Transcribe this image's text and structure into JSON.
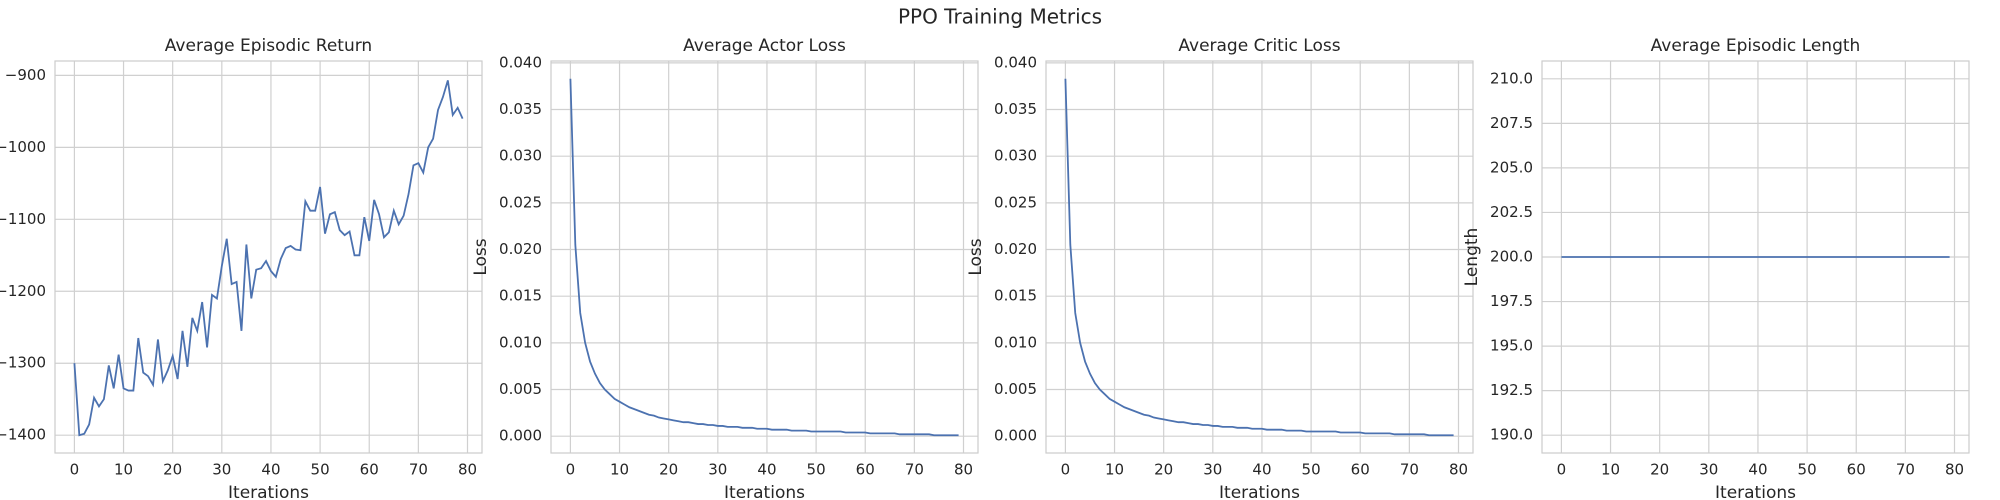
{
  "title": "PPO Training Metrics",
  "chart_data": [
    {
      "type": "line",
      "title": "Average Episodic Return",
      "xlabel": "Iterations",
      "grid": true,
      "x": [
        0,
        1,
        2,
        3,
        4,
        5,
        6,
        7,
        8,
        9,
        10,
        11,
        12,
        13,
        14,
        15,
        16,
        17,
        18,
        19,
        20,
        21,
        22,
        23,
        24,
        25,
        26,
        27,
        28,
        29,
        30,
        31,
        32,
        33,
        34,
        35,
        36,
        37,
        38,
        39,
        40,
        41,
        42,
        43,
        44,
        45,
        46,
        47,
        48,
        49,
        50,
        51,
        52,
        53,
        54,
        55,
        56,
        57,
        58,
        59,
        60,
        61,
        62,
        63,
        64,
        65,
        66,
        67,
        68,
        69,
        70,
        71,
        72,
        73,
        74,
        75,
        76,
        77,
        78,
        79
      ],
      "color": "#4c72b0",
      "values": [
        -1300,
        -1400,
        -1398,
        -1385,
        -1348,
        -1360,
        -1350,
        -1303,
        -1335,
        -1288,
        -1335,
        -1338,
        -1338,
        -1265,
        -1313,
        -1318,
        -1330,
        -1267,
        -1325,
        -1310,
        -1290,
        -1322,
        -1255,
        -1305,
        -1237,
        -1255,
        -1215,
        -1278,
        -1205,
        -1210,
        -1165,
        -1127,
        -1190,
        -1187,
        -1255,
        -1135,
        -1210,
        -1170,
        -1168,
        -1158,
        -1172,
        -1180,
        -1155,
        -1140,
        -1137,
        -1142,
        -1143,
        -1075,
        -1088,
        -1088,
        -1055,
        -1120,
        -1093,
        -1090,
        -1115,
        -1122,
        -1117,
        -1150,
        -1150,
        -1097,
        -1130,
        -1073,
        -1093,
        -1125,
        -1118,
        -1088,
        -1107,
        -1095,
        -1065,
        -1025,
        -1022,
        -1035,
        -1000,
        -988,
        -948,
        -930,
        -907,
        -955,
        -945,
        -960
      ],
      "xlim": [
        -3.95,
        82.95
      ],
      "xticks": [
        0,
        10,
        20,
        30,
        40,
        50,
        60,
        70,
        80
      ],
      "ylim": [
        -1424.75,
        -880
      ],
      "yticks": [
        {
          "value": -1400,
          "label": "−1400"
        },
        {
          "value": -1300,
          "label": "−1300"
        },
        {
          "value": -1200,
          "label": "−1200"
        },
        {
          "value": -1100,
          "label": "−1100"
        },
        {
          "value": -1000,
          "label": "−1000"
        },
        {
          "value": -900,
          "label": "−900"
        }
      ]
    },
    {
      "type": "line",
      "title": "Average Actor Loss",
      "xlabel": "Iterations",
      "ylabel": "Loss",
      "grid": true,
      "x": [
        0,
        1,
        2,
        3,
        4,
        5,
        6,
        7,
        8,
        9,
        10,
        11,
        12,
        13,
        14,
        15,
        16,
        17,
        18,
        19,
        20,
        21,
        22,
        23,
        24,
        25,
        26,
        27,
        28,
        29,
        30,
        31,
        32,
        33,
        34,
        35,
        36,
        37,
        38,
        39,
        40,
        41,
        42,
        43,
        44,
        45,
        46,
        47,
        48,
        49,
        50,
        51,
        52,
        53,
        54,
        55,
        56,
        57,
        58,
        59,
        60,
        61,
        62,
        63,
        64,
        65,
        66,
        67,
        68,
        69,
        70,
        71,
        72,
        73,
        74,
        75,
        76,
        77,
        78,
        79
      ],
      "color": "#4c72b0",
      "values": [
        0.0383,
        0.0205,
        0.0132,
        0.01,
        0.008,
        0.0067,
        0.0057,
        0.005,
        0.0045,
        0.004,
        0.0037,
        0.0034,
        0.0031,
        0.0029,
        0.0027,
        0.0025,
        0.0023,
        0.0022,
        0.002,
        0.0019,
        0.0018,
        0.0017,
        0.0016,
        0.0015,
        0.0015,
        0.0014,
        0.0013,
        0.0013,
        0.0012,
        0.0012,
        0.0011,
        0.0011,
        0.001,
        0.001,
        0.001,
        0.0009,
        0.0009,
        0.0009,
        0.0008,
        0.0008,
        0.0008,
        0.0007,
        0.0007,
        0.0007,
        0.0007,
        0.0006,
        0.0006,
        0.0006,
        0.0006,
        0.0005,
        0.0005,
        0.0005,
        0.0005,
        0.0005,
        0.0005,
        0.0005,
        0.0004,
        0.0004,
        0.0004,
        0.0004,
        0.0004,
        0.0003,
        0.0003,
        0.0003,
        0.0003,
        0.0003,
        0.0003,
        0.0002,
        0.0002,
        0.0002,
        0.0002,
        0.0002,
        0.0002,
        0.0002,
        0.0001,
        0.0001,
        0.0001,
        0.0001,
        0.0001,
        0.0001
      ],
      "xlim": [
        -3.95,
        82.95
      ],
      "xticks": [
        0,
        10,
        20,
        30,
        40,
        50,
        60,
        70,
        80
      ],
      "ylim": [
        -0.0018,
        0.0402
      ],
      "yticks": [
        {
          "value": 0,
          "label": "0.000"
        },
        {
          "value": 0.005,
          "label": "0.005"
        },
        {
          "value": 0.01,
          "label": "0.010"
        },
        {
          "value": 0.015,
          "label": "0.015"
        },
        {
          "value": 0.02,
          "label": "0.020"
        },
        {
          "value": 0.025,
          "label": "0.025"
        },
        {
          "value": 0.03,
          "label": "0.030"
        },
        {
          "value": 0.035,
          "label": "0.035"
        },
        {
          "value": 0.04,
          "label": "0.040"
        }
      ]
    },
    {
      "type": "line",
      "title": "Average Critic Loss",
      "xlabel": "Iterations",
      "ylabel": "Loss",
      "grid": true,
      "x": [
        0,
        1,
        2,
        3,
        4,
        5,
        6,
        7,
        8,
        9,
        10,
        11,
        12,
        13,
        14,
        15,
        16,
        17,
        18,
        19,
        20,
        21,
        22,
        23,
        24,
        25,
        26,
        27,
        28,
        29,
        30,
        31,
        32,
        33,
        34,
        35,
        36,
        37,
        38,
        39,
        40,
        41,
        42,
        43,
        44,
        45,
        46,
        47,
        48,
        49,
        50,
        51,
        52,
        53,
        54,
        55,
        56,
        57,
        58,
        59,
        60,
        61,
        62,
        63,
        64,
        65,
        66,
        67,
        68,
        69,
        70,
        71,
        72,
        73,
        74,
        75,
        76,
        77,
        78,
        79
      ],
      "color": "#4c72b0",
      "values": [
        0.0383,
        0.0205,
        0.0132,
        0.01,
        0.008,
        0.0067,
        0.0057,
        0.005,
        0.0045,
        0.004,
        0.0037,
        0.0034,
        0.0031,
        0.0029,
        0.0027,
        0.0025,
        0.0023,
        0.0022,
        0.002,
        0.0019,
        0.0018,
        0.0017,
        0.0016,
        0.0015,
        0.0015,
        0.0014,
        0.0013,
        0.0013,
        0.0012,
        0.0012,
        0.0011,
        0.0011,
        0.001,
        0.001,
        0.001,
        0.0009,
        0.0009,
        0.0009,
        0.0008,
        0.0008,
        0.0008,
        0.0007,
        0.0007,
        0.0007,
        0.0007,
        0.0006,
        0.0006,
        0.0006,
        0.0006,
        0.0005,
        0.0005,
        0.0005,
        0.0005,
        0.0005,
        0.0005,
        0.0005,
        0.0004,
        0.0004,
        0.0004,
        0.0004,
        0.0004,
        0.0003,
        0.0003,
        0.0003,
        0.0003,
        0.0003,
        0.0003,
        0.0002,
        0.0002,
        0.0002,
        0.0002,
        0.0002,
        0.0002,
        0.0002,
        0.0001,
        0.0001,
        0.0001,
        0.0001,
        0.0001,
        0.0001
      ],
      "xlim": [
        -3.95,
        82.95
      ],
      "xticks": [
        0,
        10,
        20,
        30,
        40,
        50,
        60,
        70,
        80
      ],
      "ylim": [
        -0.0018,
        0.0402
      ],
      "yticks": [
        {
          "value": 0,
          "label": "0.000"
        },
        {
          "value": 0.005,
          "label": "0.005"
        },
        {
          "value": 0.01,
          "label": "0.010"
        },
        {
          "value": 0.015,
          "label": "0.015"
        },
        {
          "value": 0.02,
          "label": "0.020"
        },
        {
          "value": 0.025,
          "label": "0.025"
        },
        {
          "value": 0.03,
          "label": "0.030"
        },
        {
          "value": 0.035,
          "label": "0.035"
        },
        {
          "value": 0.04,
          "label": "0.040"
        }
      ]
    },
    {
      "type": "line",
      "title": "Average Episodic Length",
      "xlabel": "Iterations",
      "ylabel": "Length",
      "grid": true,
      "x": [
        0,
        1,
        2,
        3,
        4,
        5,
        6,
        7,
        8,
        9,
        10,
        11,
        12,
        13,
        14,
        15,
        16,
        17,
        18,
        19,
        20,
        21,
        22,
        23,
        24,
        25,
        26,
        27,
        28,
        29,
        30,
        31,
        32,
        33,
        34,
        35,
        36,
        37,
        38,
        39,
        40,
        41,
        42,
        43,
        44,
        45,
        46,
        47,
        48,
        49,
        50,
        51,
        52,
        53,
        54,
        55,
        56,
        57,
        58,
        59,
        60,
        61,
        62,
        63,
        64,
        65,
        66,
        67,
        68,
        69,
        70,
        71,
        72,
        73,
        74,
        75,
        76,
        77,
        78,
        79
      ],
      "color": "#4c72b0",
      "values": [
        200,
        200,
        200,
        200,
        200,
        200,
        200,
        200,
        200,
        200,
        200,
        200,
        200,
        200,
        200,
        200,
        200,
        200,
        200,
        200,
        200,
        200,
        200,
        200,
        200,
        200,
        200,
        200,
        200,
        200,
        200,
        200,
        200,
        200,
        200,
        200,
        200,
        200,
        200,
        200,
        200,
        200,
        200,
        200,
        200,
        200,
        200,
        200,
        200,
        200,
        200,
        200,
        200,
        200,
        200,
        200,
        200,
        200,
        200,
        200,
        200,
        200,
        200,
        200,
        200,
        200,
        200,
        200,
        200,
        200,
        200,
        200,
        200,
        200,
        200,
        200,
        200,
        200,
        200,
        200
      ],
      "xlim": [
        -3.95,
        82.95
      ],
      "xticks": [
        0,
        10,
        20,
        30,
        40,
        50,
        60,
        70,
        80
      ],
      "ylim": [
        189,
        211
      ],
      "yticks": [
        {
          "value": 190,
          "label": "190.0"
        },
        {
          "value": 192.5,
          "label": "192.5"
        },
        {
          "value": 195,
          "label": "195.0"
        },
        {
          "value": 197.5,
          "label": "197.5"
        },
        {
          "value": 200,
          "label": "200.0"
        },
        {
          "value": 202.5,
          "label": "202.5"
        },
        {
          "value": 205,
          "label": "205.0"
        },
        {
          "value": 207.5,
          "label": "207.5"
        },
        {
          "value": 210,
          "label": "210.0"
        }
      ]
    }
  ]
}
